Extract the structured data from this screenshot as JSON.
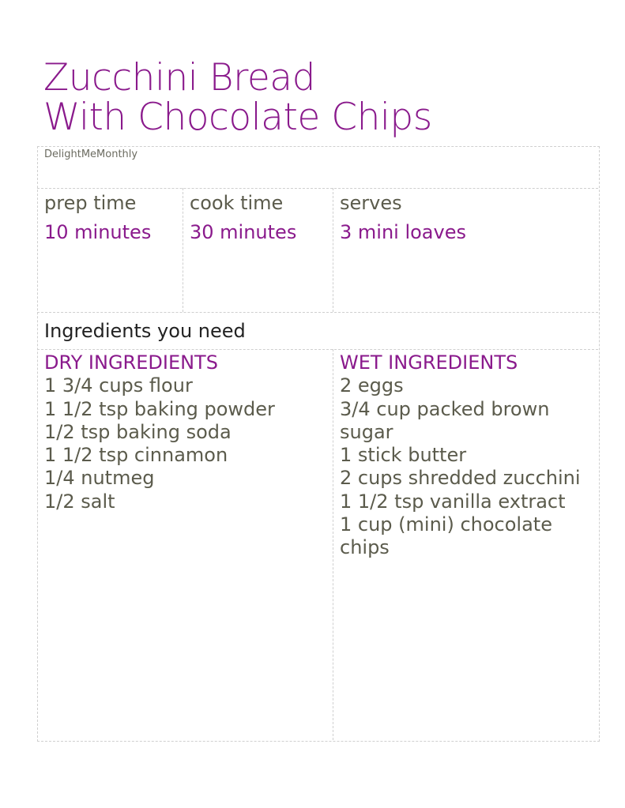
{
  "title": {
    "line1": "Zucchini Bread",
    "line2": "With Chocolate Chips"
  },
  "author": "DelightMeMonthly",
  "meta": {
    "prep": {
      "label": "prep time",
      "value": "10 minutes"
    },
    "cook": {
      "label": "cook time",
      "value": "30 minutes"
    },
    "serves": {
      "label": "serves",
      "value": "3 mini loaves"
    }
  },
  "ingredients_heading": "Ingredients you need",
  "dry": {
    "heading": "DRY INGREDIENTS",
    "items": [
      "1 3/4 cups flour",
      "1 1/2 tsp baking powder",
      "1/2 tsp baking soda",
      "1 1/2 tsp cinnamon",
      "1/4 nutmeg",
      "1/2 salt"
    ]
  },
  "wet": {
    "heading": "WET INGREDIENTS",
    "items": [
      "2 eggs",
      "3/4 cup packed brown sugar",
      "1 stick butter",
      "2 cups shredded zucchini",
      "1 1/2 tsp vanilla extract",
      "1 cup (mini) chocolate chips"
    ]
  },
  "colors": {
    "accent": "#8a1a8c",
    "text": "#5b5b4c",
    "border": "#cfcfcf"
  }
}
